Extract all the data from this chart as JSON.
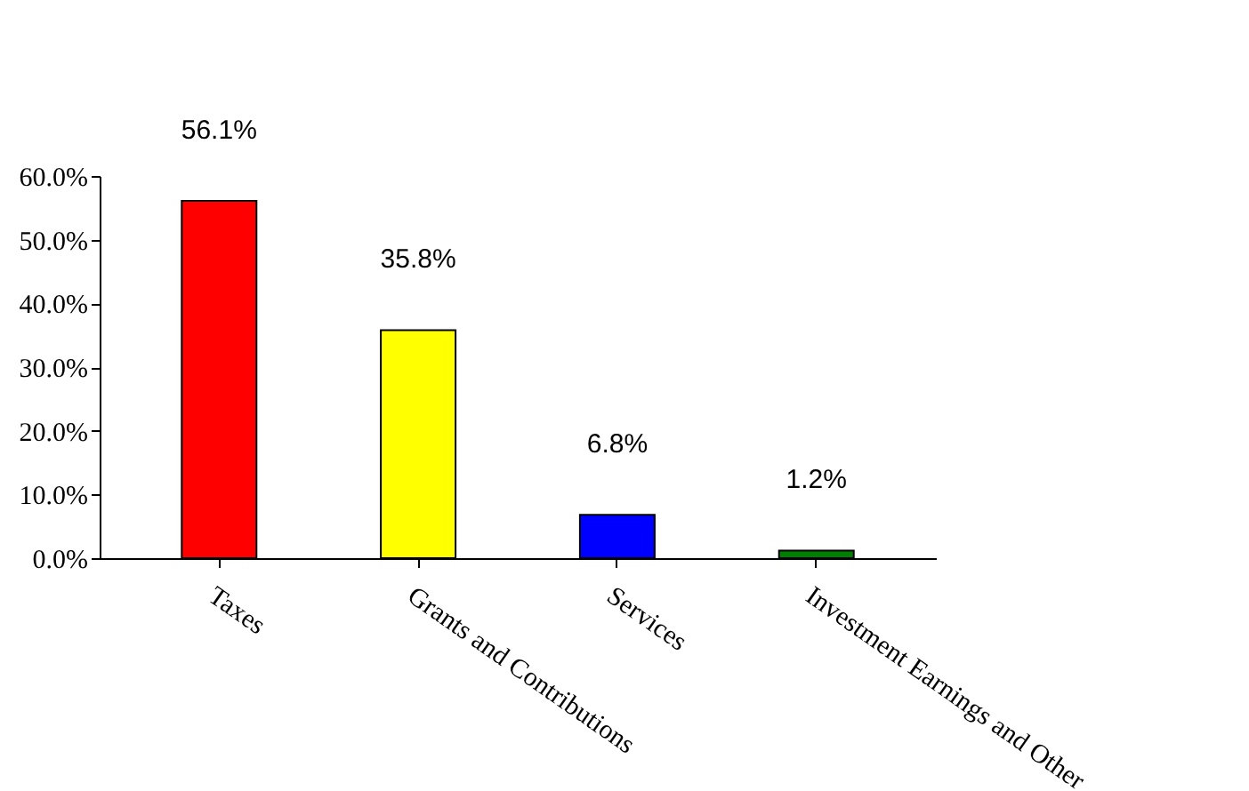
{
  "chart_data": {
    "type": "bar",
    "categories": [
      "Taxes",
      "Grants and Contributions",
      "Services",
      "Investment Earnings and Other"
    ],
    "values": [
      56.1,
      35.8,
      6.8,
      1.2
    ],
    "colors": [
      "#ff0000",
      "#ffff00",
      "#0000ff",
      "#008000"
    ],
    "value_labels": [
      "56.1%",
      "35.8%",
      "6.8%",
      "1.2%"
    ],
    "ylim": [
      0,
      60
    ],
    "yticks": [
      {
        "value": 0,
        "label": "0.0%"
      },
      {
        "value": 10,
        "label": "10.0%"
      },
      {
        "value": 20,
        "label": "20.0%"
      },
      {
        "value": 30,
        "label": "30.0%"
      },
      {
        "value": 40,
        "label": "40.0%"
      },
      {
        "value": 50,
        "label": "50.0%"
      },
      {
        "value": 60,
        "label": "60.0%"
      }
    ],
    "grid": false
  }
}
